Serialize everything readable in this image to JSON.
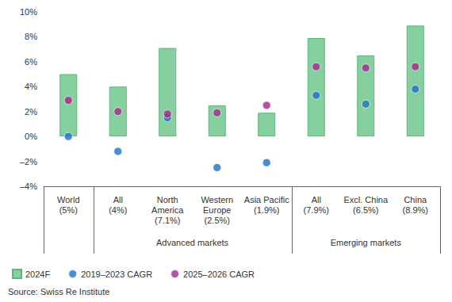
{
  "chart_data": {
    "type": "bar",
    "categories": [
      "World\n(5%)",
      "All\n(4%)",
      "North\nAmerica\n(7.1%)",
      "Western\nEurope\n(2.5%)",
      "Asia Pacific\n(1.9%)",
      "All\n(7.9%)",
      "Excl. China\n(6.5%)",
      "China\n(8.9%)"
    ],
    "groups": [
      null,
      "Advanced markets",
      "Advanced markets",
      "Advanced markets",
      "Advanced markets",
      "Emerging markets",
      "Emerging markets",
      "Emerging markets"
    ],
    "series": [
      {
        "name": "2024F",
        "type": "bar",
        "color": "#86cf9f",
        "values": [
          5,
          4,
          7.1,
          2.5,
          1.9,
          7.9,
          6.5,
          8.9
        ]
      },
      {
        "name": "2019–2023 CAGR",
        "type": "scatter",
        "marker": "circle",
        "color": "#1f6fc5",
        "values": [
          0,
          -1.2,
          1.5,
          -2.5,
          -2.1,
          3.3,
          2.6,
          3.8
        ]
      },
      {
        "name": "2025–2026 CAGR",
        "type": "scatter",
        "marker": "circle",
        "color": "#a3268f",
        "values": [
          2.9,
          2.0,
          1.8,
          1.9,
          2.5,
          5.6,
          5.5,
          5.6
        ]
      }
    ],
    "ylim": [
      -4,
      10
    ],
    "yticks": [
      {
        "value": -4,
        "label": "–4%"
      },
      {
        "value": -2,
        "label": "–2%"
      },
      {
        "value": 0,
        "label": "0%"
      },
      {
        "value": 2,
        "label": "2%"
      },
      {
        "value": 4,
        "label": "4%"
      },
      {
        "value": 6,
        "label": "6%"
      },
      {
        "value": 8,
        "label": "8%"
      },
      {
        "value": 10,
        "label": "10%"
      }
    ],
    "grid": false,
    "legend": "bottom left",
    "source": "Source: Swiss Re Institute"
  }
}
